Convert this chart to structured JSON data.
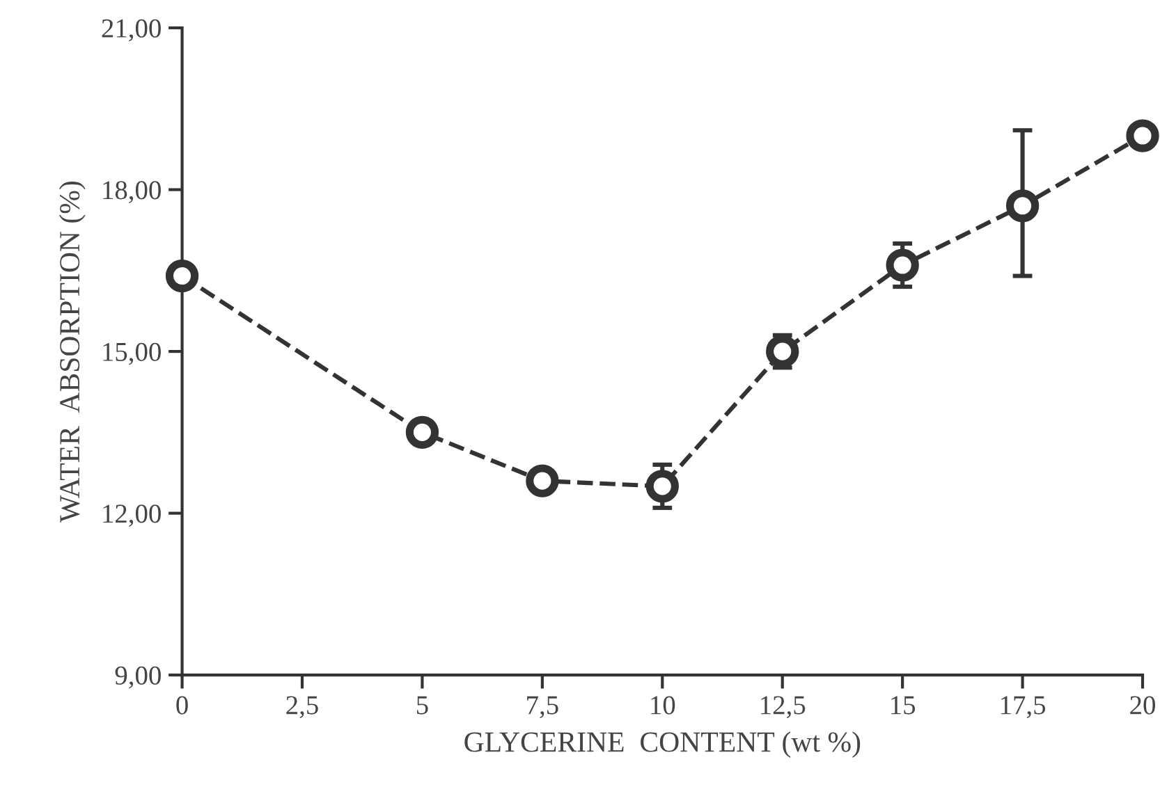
{
  "chart_data": {
    "type": "line",
    "xlabel": "GLYCERINE  CONTENT (wt %)",
    "ylabel": "WATER  ABSORPTION (%)",
    "x": [
      0,
      5,
      7.5,
      10,
      12.5,
      15,
      17.5,
      20
    ],
    "series": [
      {
        "color": "#333333",
        "values": [
          16.4,
          13.5,
          12.6,
          12.5,
          15.0,
          16.6,
          17.7,
          19.0
        ],
        "errors": [
          0.2,
          null,
          null,
          0.4,
          0.3,
          0.4,
          [
            16.4,
            19.1
          ],
          null
        ]
      }
    ],
    "xlim": [
      0,
      20
    ],
    "ylim": [
      9,
      21
    ],
    "xticks": [
      0,
      {
        "value": 2.5,
        "label": "2,5"
      },
      5,
      {
        "value": 7.5,
        "label": "7,5"
      },
      10,
      {
        "value": 12.5,
        "label": "12,5"
      },
      15,
      {
        "value": 17.5,
        "label": "17,5"
      },
      20
    ],
    "yticks": [
      {
        "value": 9,
        "label": "9,00"
      },
      {
        "value": 12,
        "label": "12,00"
      },
      {
        "value": 15,
        "label": "15,00"
      },
      {
        "value": 18,
        "label": "18,00"
      },
      {
        "value": 21,
        "label": "21,00"
      }
    ],
    "marker": "circle",
    "line_style": "dashed",
    "grid": false,
    "legend": false
  }
}
